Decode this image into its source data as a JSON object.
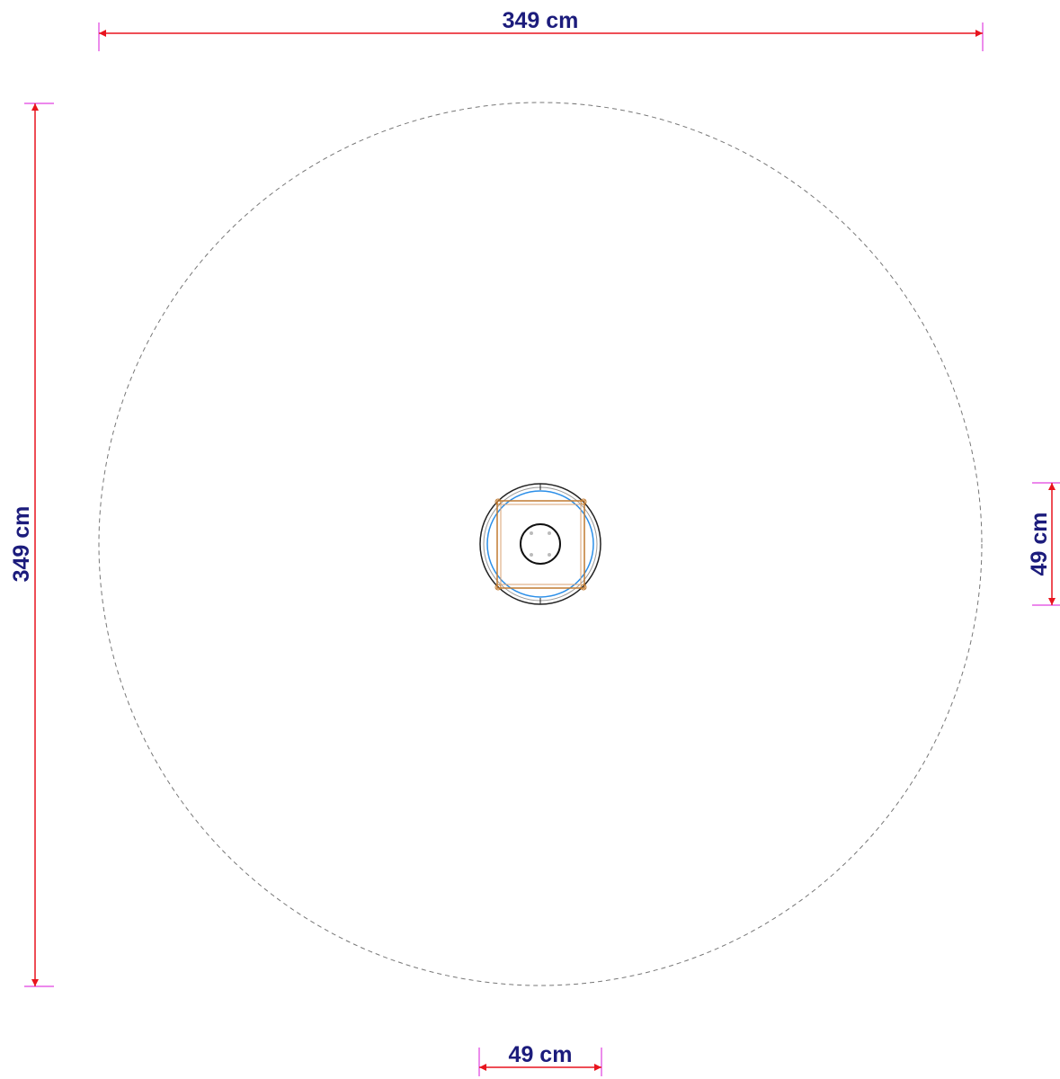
{
  "dimensions": {
    "top": {
      "label": "349 cm"
    },
    "left": {
      "label": "349 cm"
    },
    "right": {
      "label": "49 cm"
    },
    "bottom": {
      "label": "49 cm"
    }
  }
}
